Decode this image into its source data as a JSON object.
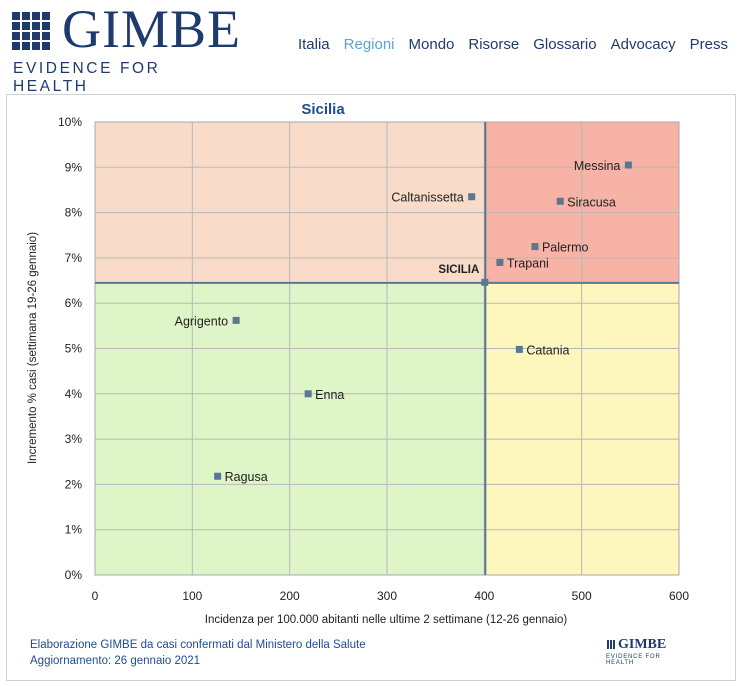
{
  "header": {
    "logo_word": "GIMBE",
    "logo_tagline": "EVIDENCE FOR HEALTH",
    "nav": [
      {
        "label": "Italia",
        "active": false
      },
      {
        "label": "Regioni",
        "active": true
      },
      {
        "label": "Mondo",
        "active": false
      },
      {
        "label": "Risorse",
        "active": false
      },
      {
        "label": "Glossario",
        "active": false
      },
      {
        "label": "Advocacy",
        "active": false
      },
      {
        "label": "Press",
        "active": false
      }
    ]
  },
  "chart_data": {
    "type": "scatter",
    "title": "Sicilia",
    "xlabel": "Incidenza per 100.000 abitanti nelle ultime 2 settimane (12-26 gennaio)",
    "ylabel": "Incremento % casi (settimana 19-26 gennaio)",
    "xlim": [
      0,
      600
    ],
    "ylim": [
      0,
      10
    ],
    "x_ticks": [
      "0",
      "100",
      "200",
      "300",
      "400",
      "500",
      "600"
    ],
    "y_ticks": [
      "0%",
      "1%",
      "2%",
      "3%",
      "4%",
      "5%",
      "6%",
      "7%",
      "8%",
      "9%",
      "10%"
    ],
    "reference": {
      "label": "SICILIA",
      "x": 401,
      "y": 6.45
    },
    "quadrant_colors": {
      "top_left": "#f8dcc9",
      "top_right": "#f6b3a6",
      "bottom_left": "#def5c8",
      "bottom_right": "#fdf6bd"
    },
    "marker_color": "#5a7793",
    "points": [
      {
        "label": "Messina",
        "x": 548,
        "y": 9.05,
        "label_side": "left"
      },
      {
        "label": "Caltanissetta",
        "x": 387,
        "y": 8.35,
        "label_side": "left"
      },
      {
        "label": "Siracusa",
        "x": 478,
        "y": 8.25,
        "label_side": "right"
      },
      {
        "label": "Palermo",
        "x": 452,
        "y": 7.25,
        "label_side": "right"
      },
      {
        "label": "Trapani",
        "x": 416,
        "y": 6.9,
        "label_side": "right"
      },
      {
        "label": "Agrigento",
        "x": 145,
        "y": 5.62,
        "label_side": "left"
      },
      {
        "label": "Catania",
        "x": 436,
        "y": 4.98,
        "label_side": "right"
      },
      {
        "label": "Enna",
        "x": 219,
        "y": 4.0,
        "label_side": "right"
      },
      {
        "label": "Ragusa",
        "x": 126,
        "y": 2.18,
        "label_side": "right"
      }
    ]
  },
  "footer": {
    "line1": "Elaborazione GIMBE da casi confermati dal Ministero della Salute",
    "line2": "Aggiornamento: 26 gennaio 2021",
    "mini_logo_word": "GIMBE",
    "mini_logo_tagline": "EVIDENCE FOR HEALTH"
  }
}
